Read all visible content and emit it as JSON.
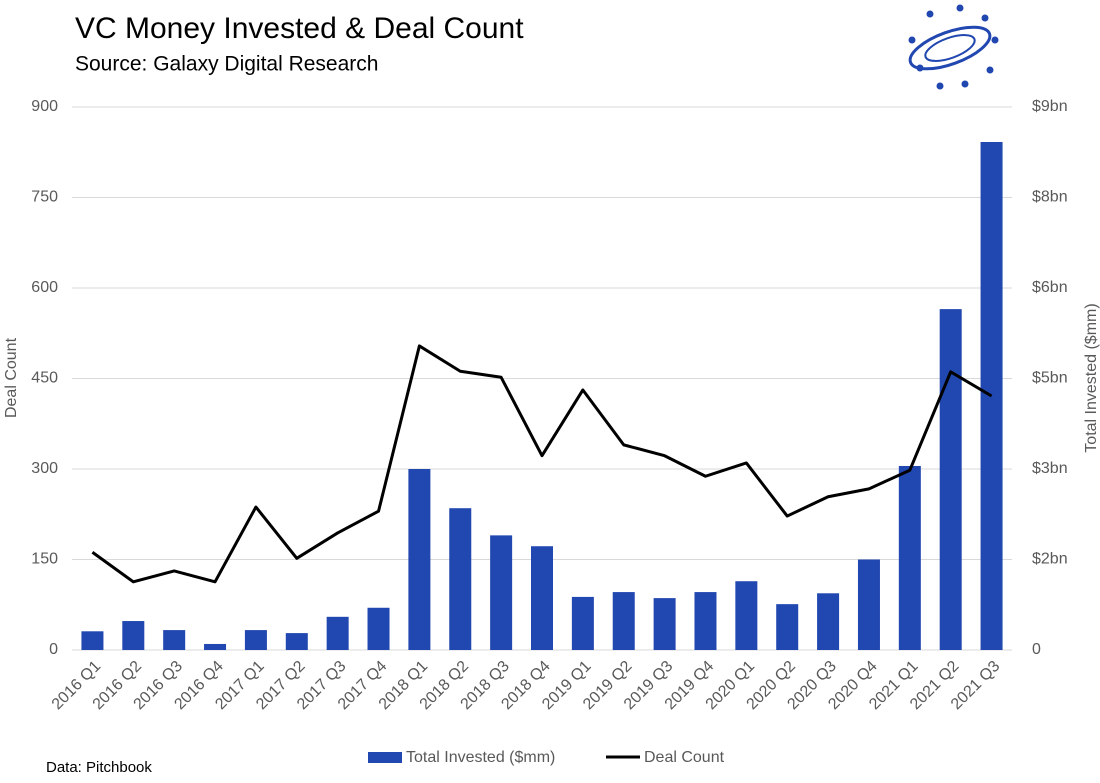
{
  "chart_data": {
    "type": "bar_line",
    "title": "VC Money Invested & Deal Count",
    "subtitle": "Source: Galaxy Digital Research",
    "footnote": "Data: Pitchbook",
    "ylabel": "Deal Count",
    "y2label": "Total Invested ($mm)",
    "categories": [
      "2016 Q1",
      "2016 Q2",
      "2016 Q3",
      "2016 Q4",
      "2017 Q1",
      "2017 Q2",
      "2017 Q3",
      "2017 Q4",
      "2018 Q1",
      "2018 Q2",
      "2018 Q3",
      "2018 Q4",
      "2019 Q1",
      "2019 Q2",
      "2019 Q3",
      "2019 Q4",
      "2020 Q1",
      "2020 Q2",
      "2020 Q3",
      "2020 Q4",
      "2021 Q1",
      "2021 Q2",
      "2021 Q3"
    ],
    "series": [
      {
        "name": "Total Invested ($mm)",
        "type": "bar",
        "axis": "y2",
        "color": "#2147b0",
        "values": [
          310,
          480,
          330,
          100,
          330,
          280,
          550,
          700,
          3000,
          2350,
          1900,
          1720,
          880,
          960,
          860,
          960,
          1140,
          760,
          940,
          1500,
          3050,
          5650,
          8420
        ]
      },
      {
        "name": "Deal Count",
        "type": "line",
        "axis": "y",
        "color": "#000000",
        "values": [
          162,
          113,
          131,
          113,
          237,
          152,
          194,
          230,
          504,
          462,
          452,
          322,
          431,
          340,
          322,
          288,
          310,
          222,
          254,
          267,
          298,
          461,
          421
        ]
      }
    ],
    "ylim": [
      0,
      900
    ],
    "yticks": [
      0,
      150,
      300,
      450,
      600,
      750,
      900
    ],
    "y2lim": [
      0,
      9000
    ],
    "y2ticks": [
      {
        "value": 0,
        "label": "0"
      },
      {
        "value": 1500,
        "label": "$2bn"
      },
      {
        "value": 3000,
        "label": "$3bn"
      },
      {
        "value": 4500,
        "label": "$5bn"
      },
      {
        "value": 6000,
        "label": "$6bn"
      },
      {
        "value": 7500,
        "label": "$8bn"
      },
      {
        "value": 9000,
        "label": "$9bn"
      }
    ],
    "grid": true,
    "legend": "bottom"
  }
}
